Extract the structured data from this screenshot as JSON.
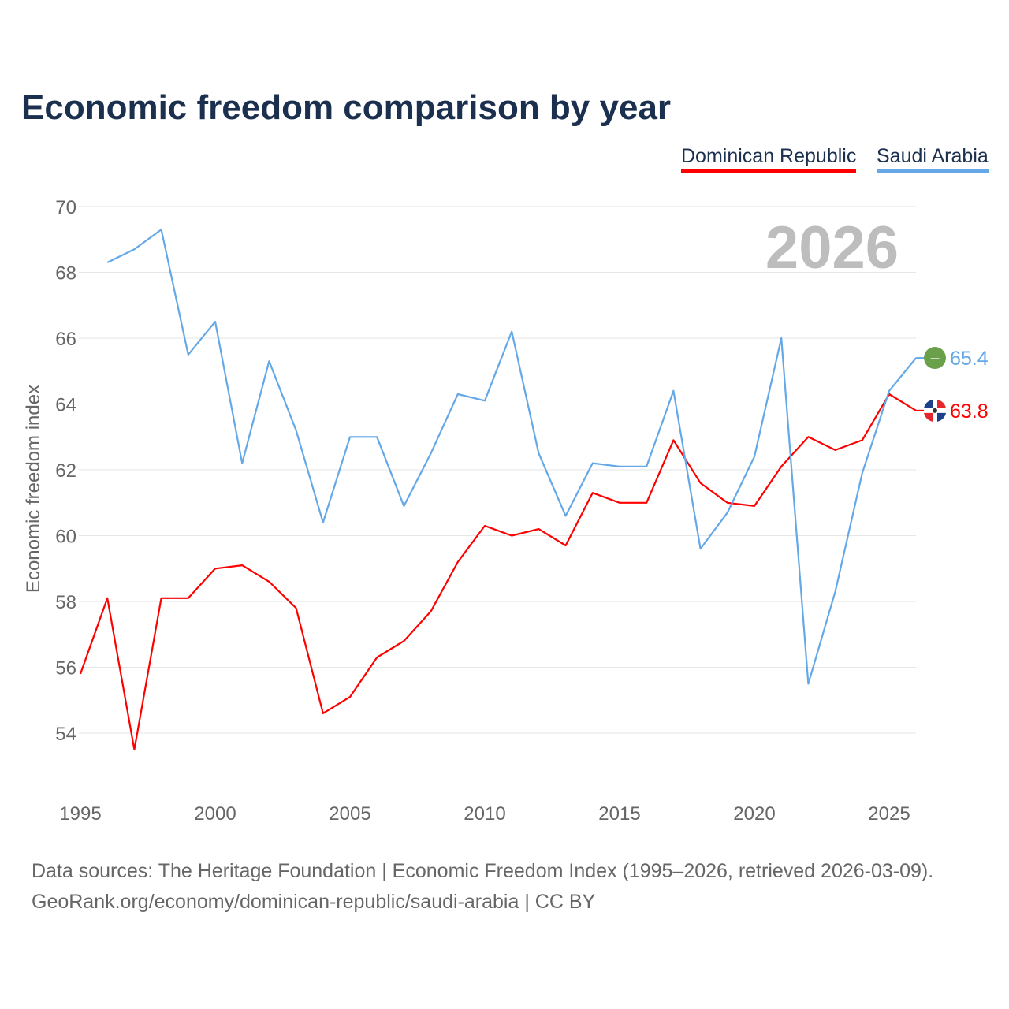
{
  "chart_data": {
    "type": "line",
    "title": "Economic freedom comparison by year",
    "xlabel": "",
    "ylabel": "Economic freedom index",
    "xlim": [
      1995,
      2026
    ],
    "ylim": [
      53,
      70.5
    ],
    "yticks": [
      54,
      56,
      58,
      60,
      62,
      64,
      66,
      68,
      70
    ],
    "xticks": [
      1995,
      2000,
      2005,
      2010,
      2015,
      2020,
      2025
    ],
    "grid": true,
    "legend_position": "top-right",
    "watermark_year": "2026",
    "series": [
      {
        "name": "Dominican Republic",
        "color": "#ff0000",
        "end_label": "63.8",
        "flag": "dominican-republic-flag",
        "x": [
          1995,
          1996,
          1997,
          1998,
          1999,
          2000,
          2001,
          2002,
          2003,
          2004,
          2005,
          2006,
          2007,
          2008,
          2009,
          2010,
          2011,
          2012,
          2013,
          2014,
          2015,
          2016,
          2017,
          2018,
          2019,
          2020,
          2021,
          2022,
          2023,
          2024,
          2025,
          2026
        ],
        "values": [
          55.8,
          58.1,
          53.5,
          58.1,
          58.1,
          59.0,
          59.1,
          58.6,
          57.8,
          54.6,
          55.1,
          56.3,
          56.8,
          57.7,
          59.2,
          60.3,
          60.0,
          60.2,
          59.7,
          61.3,
          61.0,
          61.0,
          62.9,
          61.6,
          61.0,
          60.9,
          62.1,
          63.0,
          62.6,
          62.9,
          64.3,
          63.8
        ]
      },
      {
        "name": "Saudi Arabia",
        "color": "#64a8e8",
        "end_label": "65.4",
        "flag": "saudi-arabia-flag",
        "x": [
          1996,
          1997,
          1998,
          1999,
          2000,
          2001,
          2002,
          2003,
          2004,
          2005,
          2006,
          2007,
          2008,
          2009,
          2010,
          2011,
          2012,
          2013,
          2014,
          2015,
          2016,
          2017,
          2018,
          2019,
          2020,
          2021,
          2022,
          2023,
          2024,
          2025,
          2026
        ],
        "values": [
          68.3,
          68.7,
          69.3,
          65.5,
          66.5,
          62.2,
          65.3,
          63.2,
          60.4,
          63.0,
          63.0,
          60.9,
          62.5,
          64.3,
          64.1,
          66.2,
          62.5,
          60.6,
          62.2,
          62.1,
          62.1,
          64.4,
          59.6,
          60.7,
          62.4,
          66.0,
          55.5,
          58.3,
          61.9,
          64.4,
          65.4
        ]
      }
    ]
  },
  "source": {
    "line1": "Data sources: The Heritage Foundation | Economic Freedom Index (1995–2026, retrieved 2026-03-09).",
    "line2": "GeoRank.org/economy/dominican-republic/saudi-arabia | CC BY"
  }
}
